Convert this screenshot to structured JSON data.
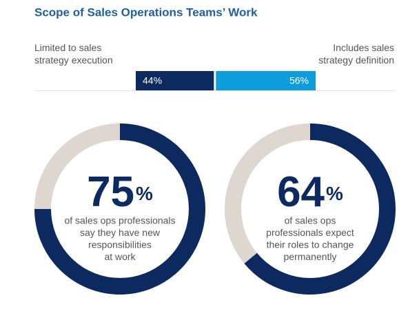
{
  "chart_data": [
    {
      "type": "bar",
      "title": "Scope of Sales Operations Teams’ Work",
      "xlim": [
        0,
        100
      ],
      "series": [
        {
          "name": "Limited to sales strategy execution",
          "color": "#0c2a5f",
          "values": [
            44
          ],
          "value_labels": [
            "44%"
          ]
        },
        {
          "name": "Includes sales strategy definition",
          "color": "#0d9ddb",
          "values": [
            56
          ],
          "value_labels": [
            "56%"
          ]
        }
      ]
    },
    {
      "type": "donut",
      "values": [
        75
      ],
      "unit": "%",
      "color": "#0c2a5f",
      "track_color": "#ddd7cf",
      "description": [
        "of sales ops professionals",
        "say they have new",
        "responsibilities",
        "at work"
      ]
    },
    {
      "type": "donut",
      "values": [
        64
      ],
      "unit": "%",
      "color": "#0c2a5f",
      "track_color": "#ddd7cf",
      "description": [
        "of sales ops",
        "professionals expect",
        "their roles to change",
        "permanently"
      ]
    }
  ]
}
